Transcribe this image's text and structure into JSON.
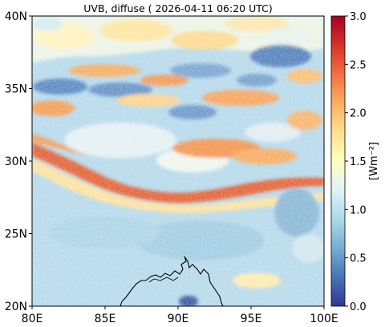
{
  "title": "UVB, diffuse ( 2026-04-11 06:20 UTC)",
  "map": {
    "lon_range": [
      80,
      100
    ],
    "lat_range": [
      20,
      40
    ],
    "lon_ticks": [
      {
        "value": 80,
        "label": "80E"
      },
      {
        "value": 85,
        "label": "85E"
      },
      {
        "value": 90,
        "label": "90E"
      },
      {
        "value": 95,
        "label": "95E"
      },
      {
        "value": 100,
        "label": "100E"
      }
    ],
    "lat_ticks": [
      {
        "value": 20,
        "label": "20N"
      },
      {
        "value": 25,
        "label": "25N"
      },
      {
        "value": 30,
        "label": "30N"
      },
      {
        "value": 35,
        "label": "35N"
      },
      {
        "value": 40,
        "label": "40N"
      }
    ]
  },
  "colorbar": {
    "label": "[Wm⁻²]",
    "range": [
      0.0,
      3.0
    ],
    "ticks": [
      {
        "value": 0.0,
        "label": "0.0"
      },
      {
        "value": 0.5,
        "label": "0.5"
      },
      {
        "value": 1.0,
        "label": "1.0"
      },
      {
        "value": 1.5,
        "label": "1.5"
      },
      {
        "value": 2.0,
        "label": "2.0"
      },
      {
        "value": 2.5,
        "label": "2.5"
      },
      {
        "value": 3.0,
        "label": "3.0"
      }
    ],
    "colormap": [
      "#313695",
      "#4575b4",
      "#74add1",
      "#abd9e9",
      "#e0f3f8",
      "#ffffbf",
      "#fee090",
      "#fdae61",
      "#f46d43",
      "#d73027",
      "#a50026"
    ]
  },
  "colors": {
    "background_field": "#b7d9ea",
    "coastline": "#000000"
  }
}
